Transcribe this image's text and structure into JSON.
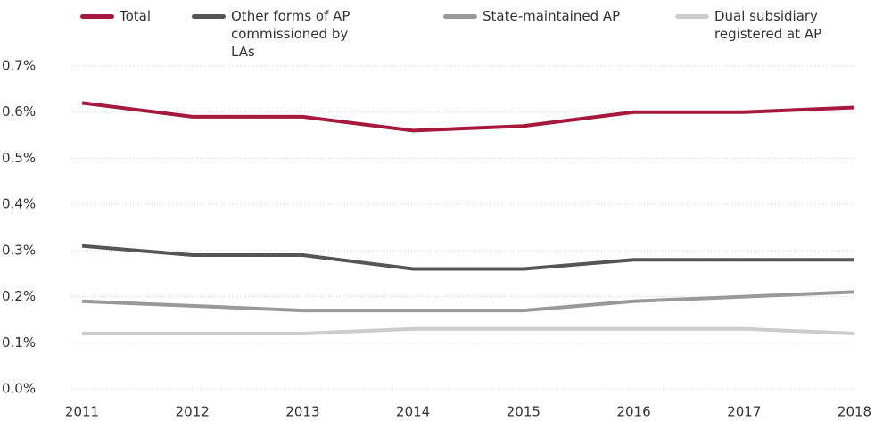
{
  "chart_data": {
    "type": "line",
    "categories": [
      "2011",
      "2012",
      "2013",
      "2014",
      "2015",
      "2016",
      "2017",
      "2018"
    ],
    "series": [
      {
        "name": "Total",
        "color": "#a6193c",
        "values": [
          0.62,
          0.59,
          0.59,
          0.56,
          0.57,
          0.6,
          0.6,
          0.61
        ]
      },
      {
        "name": "Other forms of AP commissioned by LAs",
        "color": "#555555",
        "values": [
          0.31,
          0.29,
          0.29,
          0.26,
          0.26,
          0.28,
          0.28,
          0.28
        ]
      },
      {
        "name": "State-maintained AP",
        "color": "#999999",
        "values": [
          0.19,
          0.18,
          0.17,
          0.17,
          0.17,
          0.19,
          0.2,
          0.21
        ]
      },
      {
        "name": "Dual subsidiary registered at AP",
        "color": "#cccccc",
        "values": [
          0.12,
          0.12,
          0.12,
          0.13,
          0.13,
          0.13,
          0.13,
          0.12
        ]
      }
    ],
    "ylim": [
      0,
      0.7
    ],
    "yticks": [
      {
        "value": 0,
        "label": "0.0%"
      },
      {
        "value": 0.1,
        "label": "0.1%"
      },
      {
        "value": 0.2,
        "label": "0.2%"
      },
      {
        "value": 0.3,
        "label": "0.3%"
      },
      {
        "value": 0.4,
        "label": "0.4%"
      },
      {
        "value": 0.5,
        "label": "0.5%"
      },
      {
        "value": 0.6,
        "label": "0.6%"
      },
      {
        "value": 0.7,
        "label": "0.7%"
      }
    ],
    "grid": true
  }
}
